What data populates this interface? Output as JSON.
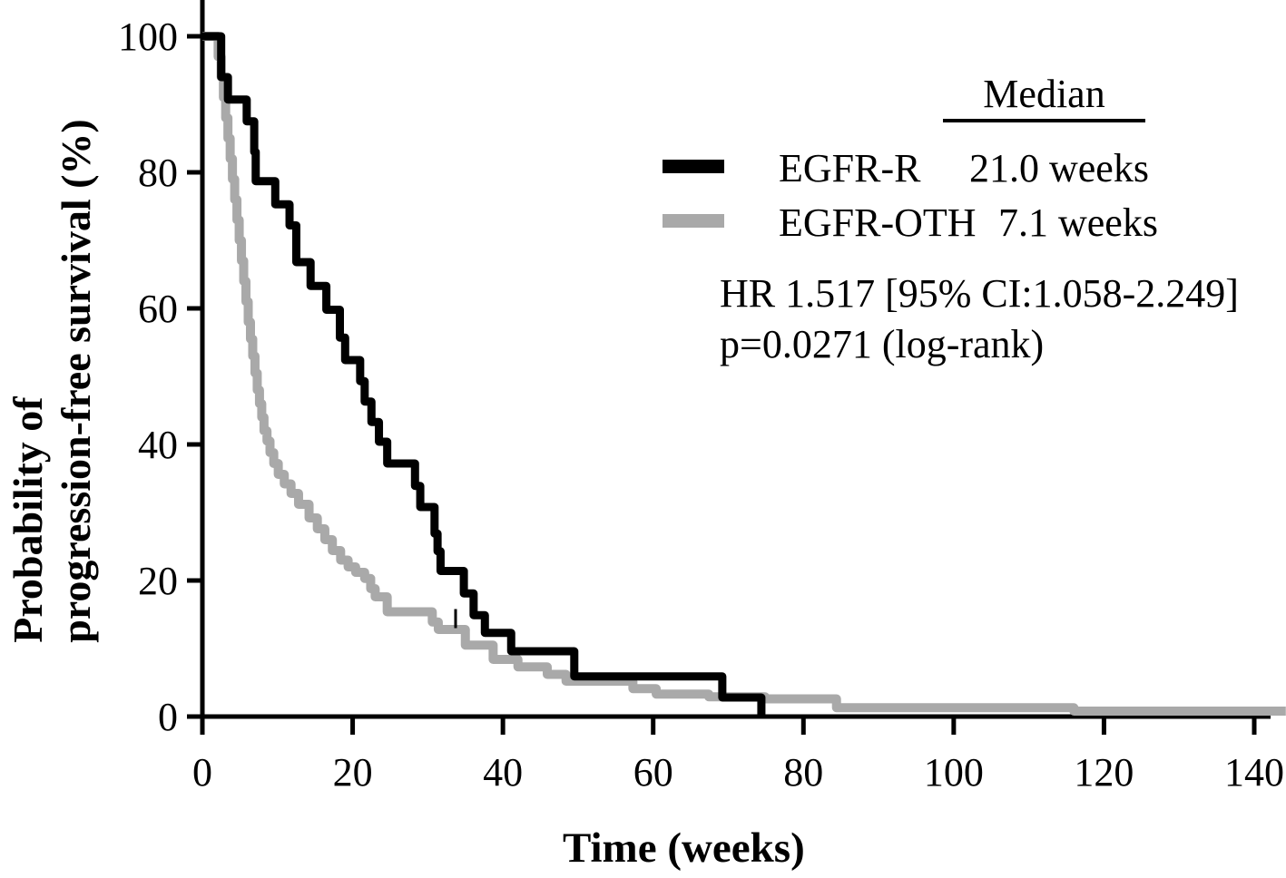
{
  "y_axis_label_line1": "Probability of",
  "y_axis_label_line2": "progression-free survival (%)",
  "x_axis_label": "Time (weeks)",
  "legend": {
    "header": "Median",
    "rows": [
      {
        "name": "EGFR-R",
        "median": "21.0 weeks",
        "color": "#000000"
      },
      {
        "name": "EGFR-OTH",
        "median": "7.1 weeks",
        "color": "#a9a9a9"
      }
    ]
  },
  "stats": {
    "line1": "HR 1.517 [95% CI:1.058-2.249]",
    "line2": "p=0.0271 (log-rank)"
  },
  "chart_data": {
    "type": "line",
    "subtype": "kaplan-meier-step",
    "title": "",
    "xlabel": "Time (weeks)",
    "ylabel": "Probability of progression-free survival (%)",
    "xlim": [
      0,
      145
    ],
    "ylim": [
      0,
      100
    ],
    "x_ticks": [
      0,
      20,
      40,
      60,
      80,
      100,
      120,
      140
    ],
    "y_ticks": [
      0,
      20,
      40,
      60,
      80,
      100
    ],
    "grid": false,
    "legend_position": "upper right",
    "annotations": [
      "HR 1.517 [95% CI:1.058-2.249]",
      "p=0.0271 (log-rank)"
    ],
    "series": [
      {
        "name": "EGFR-OTH",
        "color": "#a9a9a9",
        "median_weeks": 7.1,
        "end_t": 144.2,
        "censor_ticks": [
          {
            "t": 33.7,
            "v": 13.0
          }
        ],
        "steps": [
          [
            0,
            100
          ],
          [
            2.1,
            97
          ],
          [
            2.5,
            94
          ],
          [
            2.8,
            91
          ],
          [
            3.1,
            88
          ],
          [
            3.4,
            85
          ],
          [
            3.7,
            82
          ],
          [
            4.0,
            79
          ],
          [
            4.3,
            76
          ],
          [
            4.6,
            73
          ],
          [
            4.9,
            70
          ],
          [
            5.2,
            67
          ],
          [
            5.5,
            64
          ],
          [
            5.8,
            61
          ],
          [
            6.1,
            58
          ],
          [
            6.4,
            55.5
          ],
          [
            6.7,
            53
          ],
          [
            7.0,
            50.5
          ],
          [
            7.3,
            48
          ],
          [
            7.6,
            46
          ],
          [
            7.9,
            44
          ],
          [
            8.2,
            42
          ],
          [
            8.6,
            40.5
          ],
          [
            9.0,
            38.8
          ],
          [
            9.5,
            37.2
          ],
          [
            10.1,
            35.6
          ],
          [
            10.9,
            34.2
          ],
          [
            11.8,
            32.8
          ],
          [
            12.8,
            31.2
          ],
          [
            14.2,
            29.2
          ],
          [
            15.3,
            27.6
          ],
          [
            16.3,
            26
          ],
          [
            17.3,
            24.4
          ],
          [
            18.4,
            23
          ],
          [
            19.4,
            22
          ],
          [
            20.4,
            21.2
          ],
          [
            21.6,
            20.3
          ],
          [
            22.4,
            18.8
          ],
          [
            23.0,
            17.6
          ],
          [
            24.6,
            15.4
          ],
          [
            30.6,
            13.9
          ],
          [
            31.4,
            12.8
          ],
          [
            35.0,
            10.5
          ],
          [
            38.7,
            8.4
          ],
          [
            42.0,
            7.3
          ],
          [
            45.9,
            6.2
          ],
          [
            48.4,
            5.2
          ],
          [
            57.3,
            4.1
          ],
          [
            60.4,
            3.3
          ],
          [
            67.4,
            2.9
          ],
          [
            74.9,
            2.6
          ],
          [
            84.4,
            1.3
          ],
          [
            116.0,
            0.8
          ]
        ]
      },
      {
        "name": "EGFR-R",
        "color": "#000000",
        "median_weeks": 21.0,
        "end_t": 74.4,
        "censor_ticks": [],
        "steps": [
          [
            0,
            100
          ],
          [
            2.5,
            94
          ],
          [
            3.4,
            90.7
          ],
          [
            5.9,
            87.5
          ],
          [
            6.9,
            83
          ],
          [
            7.1,
            78.7
          ],
          [
            9.7,
            75.3
          ],
          [
            11.6,
            72.2
          ],
          [
            12.5,
            66.8
          ],
          [
            14.4,
            63.3
          ],
          [
            16.5,
            59.8
          ],
          [
            18.3,
            55.7
          ],
          [
            19.0,
            52.4
          ],
          [
            21.0,
            49.3
          ],
          [
            21.6,
            46.3
          ],
          [
            22.5,
            43.3
          ],
          [
            23.5,
            40.4
          ],
          [
            24.6,
            37.2
          ],
          [
            28.3,
            33.9
          ],
          [
            29.0,
            30.8
          ],
          [
            30.9,
            26.9
          ],
          [
            31.3,
            24.3
          ],
          [
            31.7,
            21.4
          ],
          [
            34.8,
            18.1
          ],
          [
            36.1,
            14.9
          ],
          [
            37.6,
            12.3
          ],
          [
            41.1,
            9.6
          ],
          [
            49.5,
            5.9
          ],
          [
            69.2,
            2.8
          ],
          [
            74.4,
            0
          ]
        ]
      }
    ]
  }
}
